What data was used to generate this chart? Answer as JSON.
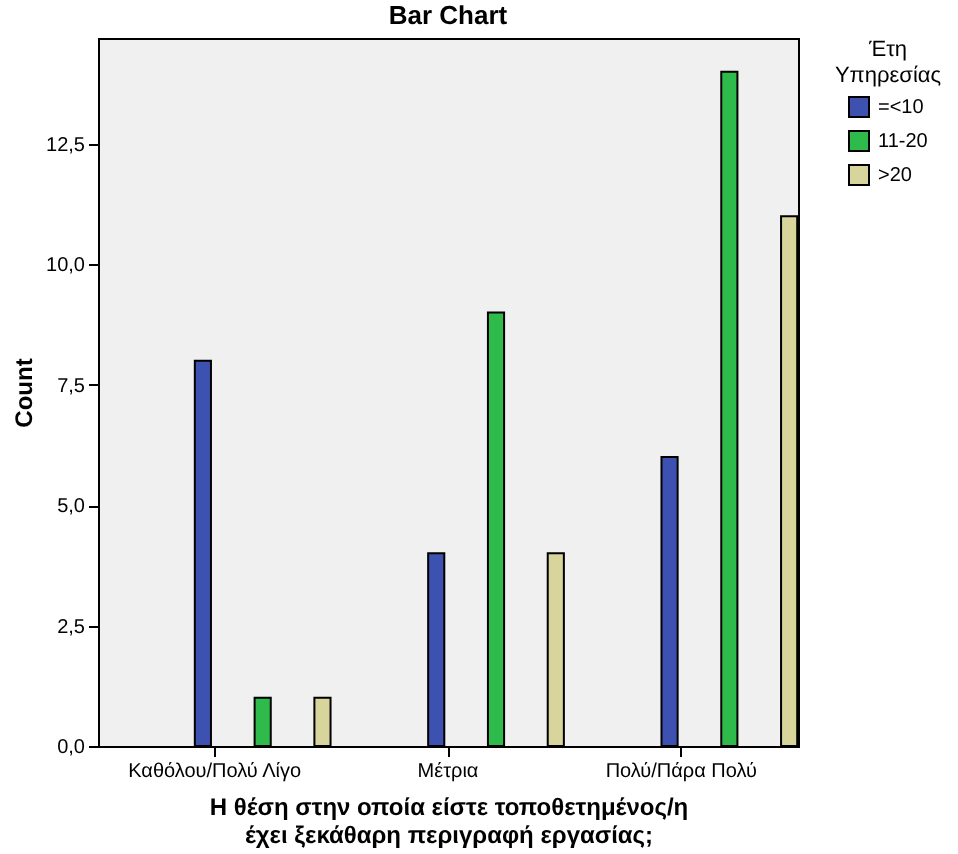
{
  "chart_data": {
    "type": "bar",
    "title": "Bar Chart",
    "xlabel": "Η θέση στην οποία είστε τοποθετημένος/η έχει ξεκάθαρη περιγραφή εργασίας;",
    "ylabel": "Count",
    "legend_title": "Έτη Υπηρεσίας",
    "legend": "top right",
    "categories": [
      "Καθόλου/Πολύ Λίγο",
      "Μέτρια",
      "Πολύ/Πάρα Πολύ"
    ],
    "series": [
      {
        "name": "=<10",
        "color": "#3d52b0",
        "values": [
          8,
          4,
          6
        ]
      },
      {
        "name": "11-20",
        "color": "#2fbb4b",
        "values": [
          1,
          9,
          14
        ]
      },
      {
        "name": ">20",
        "color": "#d8d59c",
        "values": [
          1,
          4,
          11
        ]
      }
    ],
    "ylim": [
      0,
      14.7
    ],
    "yticks": [
      {
        "value": 0,
        "label": "0,0"
      },
      {
        "value": 2.5,
        "label": "2,5"
      },
      {
        "value": 5,
        "label": "5,0"
      },
      {
        "value": 7.5,
        "label": "7,5"
      },
      {
        "value": 10,
        "label": "10,0"
      },
      {
        "value": 12.5,
        "label": "12,5"
      }
    ]
  }
}
